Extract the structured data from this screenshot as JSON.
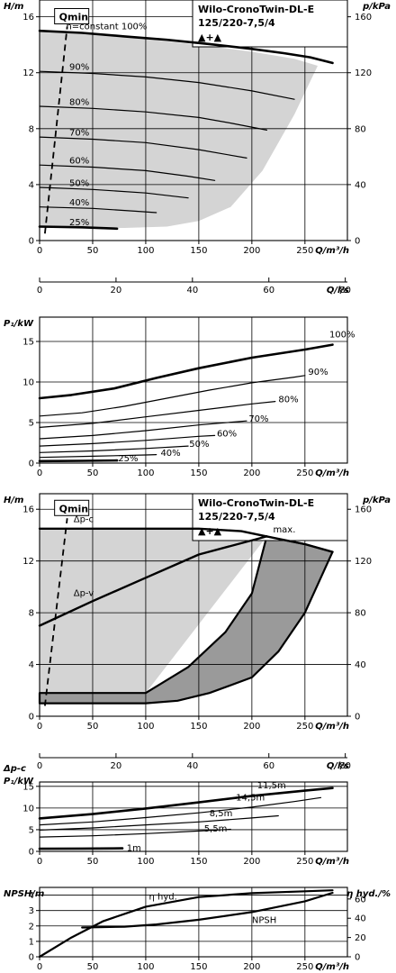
{
  "chart_data": [
    {
      "id": "qh_speed",
      "type": "line",
      "title": "Wilo-CronoTwin-DL-E",
      "subtitle": "125/220-7,5/4",
      "symbol": "▲+▲",
      "xlabel": "Q/m³/h",
      "ylabel": "H/m",
      "y2label": "p/kPa",
      "x2label": "Q/l/s",
      "xlim": [
        0,
        290
      ],
      "ylim": [
        0,
        17.2
      ],
      "x_ticks": [
        0,
        50,
        100,
        150,
        200,
        250
      ],
      "y_ticks": [
        0,
        4,
        8,
        12,
        16
      ],
      "y2_ticks": [
        0,
        40,
        80,
        120,
        160
      ],
      "x2_ticks": [
        0,
        20,
        40,
        60,
        80
      ],
      "qmin_label": "Qmin",
      "qmin_line": [
        [
          5,
          0.5
        ],
        [
          26,
          15.3
        ]
      ],
      "envelope": [
        [
          0,
          15.0
        ],
        [
          40,
          14.8
        ],
        [
          100,
          14.4
        ],
        [
          150,
          14.0
        ],
        [
          200,
          13.5
        ],
        [
          240,
          13.0
        ],
        [
          262,
          12.5
        ],
        [
          240,
          9.0
        ],
        [
          210,
          5.0
        ],
        [
          180,
          2.4
        ],
        [
          150,
          1.4
        ],
        [
          120,
          1.0
        ],
        [
          80,
          0.9
        ],
        [
          0,
          0.9
        ]
      ],
      "series": [
        {
          "name": "n=constant 100%",
          "bold": true,
          "x": [
            0,
            40,
            80,
            120,
            160,
            200,
            230,
            255,
            276
          ],
          "y": [
            15.0,
            14.85,
            14.6,
            14.35,
            14.05,
            13.7,
            13.4,
            13.1,
            12.7
          ]
        },
        {
          "name": "90%",
          "x": [
            0,
            50,
            100,
            150,
            200,
            240
          ],
          "y": [
            12.1,
            11.95,
            11.7,
            11.3,
            10.7,
            10.1
          ]
        },
        {
          "name": "80%",
          "x": [
            0,
            50,
            100,
            150,
            180,
            214
          ],
          "y": [
            9.6,
            9.45,
            9.2,
            8.8,
            8.4,
            7.9
          ]
        },
        {
          "name": "70%",
          "x": [
            0,
            50,
            100,
            150,
            180,
            195
          ],
          "y": [
            7.4,
            7.25,
            7.0,
            6.5,
            6.1,
            5.9
          ]
        },
        {
          "name": "60%",
          "x": [
            0,
            50,
            100,
            140,
            165
          ],
          "y": [
            5.4,
            5.25,
            5.0,
            4.6,
            4.3
          ]
        },
        {
          "name": "50%",
          "x": [
            0,
            50,
            100,
            140
          ],
          "y": [
            3.8,
            3.65,
            3.4,
            3.05
          ]
        },
        {
          "name": "40%",
          "x": [
            0,
            50,
            90,
            110
          ],
          "y": [
            2.4,
            2.3,
            2.1,
            2.0
          ]
        },
        {
          "name": "25%",
          "bold": true,
          "x": [
            0,
            40,
            73
          ],
          "y": [
            1.0,
            0.95,
            0.85
          ]
        }
      ],
      "series_labels": [
        {
          "text": "n=constant 100%",
          "x": 25,
          "y": 15.1
        },
        {
          "text": "90%",
          "x": 28,
          "y": 12.2
        },
        {
          "text": "80%",
          "x": 28,
          "y": 9.7
        },
        {
          "text": "70%",
          "x": 28,
          "y": 7.5
        },
        {
          "text": "60%",
          "x": 28,
          "y": 5.5
        },
        {
          "text": "50%",
          "x": 28,
          "y": 3.9
        },
        {
          "text": "40%",
          "x": 28,
          "y": 2.5
        },
        {
          "text": "25%",
          "x": 28,
          "y": 1.1
        }
      ]
    },
    {
      "id": "power_speed",
      "type": "line",
      "xlabel": "Q/m³/h",
      "ylabel": "P₁/kW",
      "xlim": [
        0,
        290
      ],
      "ylim": [
        0,
        18
      ],
      "x_ticks": [
        0,
        50,
        100,
        150,
        200,
        250
      ],
      "y_ticks": [
        0,
        5,
        10,
        15
      ],
      "series": [
        {
          "name": "100%",
          "bold": true,
          "x": [
            0,
            30,
            70,
            110,
            150,
            200,
            250,
            276
          ],
          "y": [
            8.0,
            8.4,
            9.2,
            10.5,
            11.7,
            13.0,
            14.0,
            14.6
          ]
        },
        {
          "name": "90%",
          "x": [
            0,
            40,
            80,
            120,
            160,
            200,
            240,
            250
          ],
          "y": [
            5.8,
            6.2,
            7.0,
            8.0,
            9.0,
            9.9,
            10.6,
            10.8
          ]
        },
        {
          "name": "80%",
          "x": [
            0,
            50,
            100,
            150,
            200,
            222
          ],
          "y": [
            4.4,
            4.9,
            5.7,
            6.5,
            7.3,
            7.6
          ]
        },
        {
          "name": "70%",
          "x": [
            0,
            50,
            100,
            150,
            195
          ],
          "y": [
            3.0,
            3.4,
            4.0,
            4.7,
            5.2
          ]
        },
        {
          "name": "60%",
          "x": [
            0,
            50,
            100,
            150,
            165
          ],
          "y": [
            2.1,
            2.4,
            2.8,
            3.3,
            3.4
          ]
        },
        {
          "name": "50%",
          "x": [
            0,
            50,
            100,
            140
          ],
          "y": [
            1.3,
            1.5,
            1.8,
            2.1
          ]
        },
        {
          "name": "40%",
          "x": [
            0,
            50,
            100,
            110
          ],
          "y": [
            0.7,
            0.85,
            1.0,
            1.05
          ]
        },
        {
          "name": "25%",
          "bold": true,
          "x": [
            0,
            40,
            73
          ],
          "y": [
            0.25,
            0.28,
            0.32
          ]
        }
      ],
      "series_labels": [
        {
          "text": "100%",
          "x": 273,
          "y": 15.5
        },
        {
          "text": "90%",
          "x": 253,
          "y": 10.9
        },
        {
          "text": "80%",
          "x": 225,
          "y": 7.5
        },
        {
          "text": "70%",
          "x": 197,
          "y": 5.1
        },
        {
          "text": "60%",
          "x": 167,
          "y": 3.3
        },
        {
          "text": "50%",
          "x": 141,
          "y": 2.0
        },
        {
          "text": "40%",
          "x": 114,
          "y": 0.9
        },
        {
          "text": "25%",
          "x": 74,
          "y": 0.2
        }
      ]
    },
    {
      "id": "qh_control",
      "type": "area",
      "title": "Wilo-CronoTwin-DL-E",
      "subtitle": "125/220-7,5/4",
      "symbol": "▲+▲",
      "xlabel": "Q/m³/h",
      "ylabel": "H/m",
      "y2label": "p/kPa",
      "x2label": "Q/l/s",
      "xlim": [
        0,
        290
      ],
      "ylim": [
        0,
        17.2
      ],
      "x_ticks": [
        0,
        50,
        100,
        150,
        200,
        250
      ],
      "y_ticks": [
        0,
        4,
        8,
        12,
        16
      ],
      "y2_ticks": [
        0,
        40,
        80,
        120,
        160
      ],
      "x2_ticks": [
        0,
        20,
        40,
        60,
        80
      ],
      "qmin_label": "Qmin",
      "qmin_line": [
        [
          5,
          0.8
        ],
        [
          26,
          15.3
        ]
      ],
      "dpc_region": [
        [
          0,
          14.5
        ],
        [
          40,
          14.5
        ],
        [
          100,
          14.5
        ],
        [
          150,
          14.5
        ],
        [
          190,
          14.3
        ],
        [
          214,
          13.9
        ],
        [
          100,
          1.8
        ],
        [
          0,
          1.6
        ]
      ],
      "dpv_region": [
        [
          0,
          1.8
        ],
        [
          100,
          1.8
        ],
        [
          140,
          3.8
        ],
        [
          175,
          6.5
        ],
        [
          200,
          9.5
        ],
        [
          214,
          13.9
        ],
        [
          250,
          13.3
        ],
        [
          276,
          12.7
        ],
        [
          250,
          8.0
        ],
        [
          225,
          5.0
        ],
        [
          200,
          3.0
        ],
        [
          160,
          1.8
        ],
        [
          130,
          1.2
        ],
        [
          100,
          1.0
        ],
        [
          0,
          1.0
        ]
      ],
      "series": [
        {
          "name": "Δp-c",
          "x": [
            0,
            100,
            150,
            190,
            214
          ],
          "y": [
            14.5,
            14.5,
            14.5,
            14.3,
            13.9
          ]
        },
        {
          "name": "Δp-v",
          "x": [
            0,
            50,
            100,
            150,
            214
          ],
          "y": [
            7.0,
            8.9,
            10.7,
            12.5,
            13.9
          ]
        },
        {
          "name": "max.",
          "x": [
            214,
            250,
            276
          ],
          "y": [
            13.9,
            13.3,
            12.7
          ]
        }
      ],
      "series_labels": [
        {
          "text": "Δp-c",
          "x": 32,
          "y": 15.0
        },
        {
          "text": "Δp-v",
          "x": 32,
          "y": 9.3
        },
        {
          "text": "max.",
          "x": 220,
          "y": 14.2
        }
      ]
    },
    {
      "id": "power_control",
      "type": "line",
      "xlabel": "Q/m³/h",
      "ylabel": "P₁/kW",
      "ylabel_top": "Δp-c",
      "xlim": [
        0,
        290
      ],
      "ylim": [
        0,
        16
      ],
      "x_ticks": [
        0,
        50,
        100,
        150,
        200,
        250
      ],
      "y_ticks": [
        0,
        5,
        10,
        15
      ],
      "series": [
        {
          "name": "11,5m",
          "bold": true,
          "x": [
            0,
            50,
            100,
            150,
            200,
            250,
            276
          ],
          "y": [
            7.6,
            8.6,
            9.9,
            11.3,
            12.8,
            14.0,
            14.6
          ]
        },
        {
          "name": "14,5m",
          "x": [
            0,
            50,
            100,
            150,
            200,
            240,
            265
          ],
          "y": [
            6.1,
            6.8,
            7.8,
            8.9,
            10.2,
            11.5,
            12.4
          ]
        },
        {
          "name": "8,5m",
          "x": [
            0,
            50,
            100,
            150,
            200,
            225
          ],
          "y": [
            4.9,
            5.4,
            6.1,
            6.8,
            7.7,
            8.2
          ]
        },
        {
          "name": "5,5m",
          "x": [
            0,
            50,
            100,
            150,
            180
          ],
          "y": [
            3.3,
            3.6,
            4.1,
            4.7,
            5.1
          ]
        },
        {
          "name": "1m",
          "bold": true,
          "x": [
            0,
            40,
            78
          ],
          "y": [
            0.6,
            0.65,
            0.7
          ]
        }
      ],
      "series_labels": [
        {
          "text": "11,5m",
          "x": 205,
          "y": 14.5
        },
        {
          "text": "14,5m",
          "x": 185,
          "y": 11.7
        },
        {
          "text": "8,5m",
          "x": 160,
          "y": 8.1
        },
        {
          "text": "5,5m",
          "x": 155,
          "y": 4.6
        },
        {
          "text": "1m",
          "x": 82,
          "y": 0.1
        }
      ]
    },
    {
      "id": "npsh_eff",
      "type": "line",
      "xlabel": "Q/m³/h",
      "ylabel": "NPSH/m",
      "y2label": "η hyd./%",
      "xlim": [
        0,
        290
      ],
      "ylim": [
        0,
        4.5
      ],
      "x_ticks": [
        0,
        50,
        100,
        150,
        200,
        250
      ],
      "y_ticks": [
        0,
        1,
        2,
        3,
        4
      ],
      "y2_ticks": [
        0,
        20,
        40,
        60
      ],
      "y2lim": [
        0,
        72
      ],
      "series": [
        {
          "name": "η hyd.",
          "axis": "right",
          "x": [
            0,
            30,
            60,
            100,
            150,
            200,
            250,
            276
          ],
          "y": [
            0,
            20,
            37,
            52,
            62,
            66,
            68,
            69
          ]
        },
        {
          "name": "NPSH",
          "axis": "left",
          "x": [
            40,
            80,
            110,
            150,
            200,
            250,
            276
          ],
          "y": [
            1.9,
            1.95,
            2.1,
            2.4,
            2.9,
            3.6,
            4.15
          ]
        }
      ],
      "series_labels": [
        {
          "text": "η hyd.",
          "x": 103,
          "y": 3.7
        },
        {
          "text": "NPSH",
          "x": 200,
          "y": 2.2
        }
      ]
    }
  ]
}
